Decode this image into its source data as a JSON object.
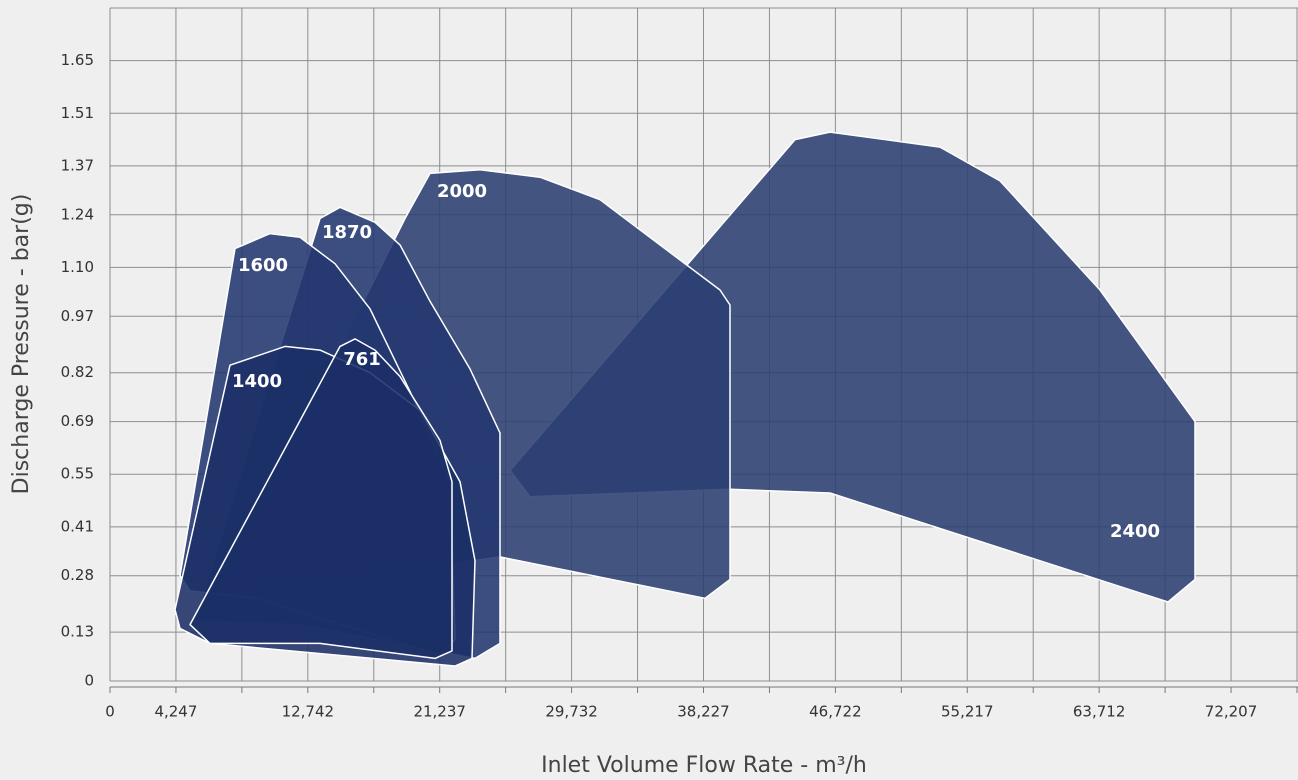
{
  "chart_data": {
    "type": "region",
    "x_label": "Inlet Volume Flow Rate - m³/h",
    "y_label": "Discharge Pressure - bar(g)",
    "xlim": [
      0,
      76520
    ],
    "ylim": [
      0,
      1.79
    ],
    "xticks": [
      0,
      {
        "value": 4247,
        "label": "4,247"
      },
      {
        "value": 12742,
        "label": "12,742"
      },
      {
        "value": 21237,
        "label": "21,237"
      },
      {
        "value": 29732,
        "label": "29,732"
      },
      {
        "value": 38227,
        "label": "38,227"
      },
      {
        "value": 46722,
        "label": "46,722"
      },
      {
        "value": 55217,
        "label": "55,217"
      },
      {
        "value": 63712,
        "label": "63,712"
      },
      {
        "value": 72207,
        "label": "72,207"
      }
    ],
    "xminorticks": [
      8495,
      16990,
      25485,
      33980,
      42475,
      50970,
      59465,
      67960,
      76455
    ],
    "yticks": [
      0,
      0.13,
      0.28,
      0.41,
      0.55,
      0.69,
      0.82,
      0.97,
      {
        "value": 1.1,
        "label": "1.10"
      },
      1.24,
      1.37,
      1.51,
      1.65
    ],
    "grid": true,
    "series": [
      {
        "name": "2400",
        "color": "#2b3f72",
        "x": [
          25764,
          44121,
          46375,
          53460,
          57325,
          63766,
          69885,
          69885,
          68146,
          46375,
          39934,
          27052
        ],
        "y": [
          0.56,
          1.44,
          1.46,
          1.42,
          1.33,
          1.04,
          0.69,
          0.27,
          0.21,
          0.5,
          0.51,
          0.49
        ]
      },
      {
        "name": "2000",
        "color": "#2b3f72",
        "x": [
          6763,
          19001,
          20611,
          23832,
          27696,
          31561,
          35426,
          39290,
          39934,
          39934,
          38324,
          25120
        ],
        "y": [
          0.22,
          1.23,
          1.35,
          1.36,
          1.34,
          1.28,
          1.16,
          1.04,
          1.0,
          0.27,
          0.22,
          0.33
        ]
      },
      {
        "name": "1870",
        "color": "#233770",
        "x": [
          5475,
          13526,
          14814,
          17069,
          18679,
          20611,
          23188,
          25120,
          25120,
          23510,
          12238
        ],
        "y": [
          0.16,
          1.23,
          1.26,
          1.22,
          1.16,
          1.01,
          0.83,
          0.66,
          0.1,
          0.06,
          0.15
        ]
      },
      {
        "name": "1600",
        "color": "#233770",
        "x": [
          4509,
          8051,
          10306,
          12238,
          14492,
          16747,
          19323,
          21899,
          22221,
          21255,
          9339,
          5153
        ],
        "y": [
          0.28,
          1.15,
          1.19,
          1.18,
          1.11,
          0.99,
          0.77,
          0.53,
          0.11,
          0.07,
          0.22,
          0.24
        ]
      },
      {
        "name": "1400",
        "color": "#1b2f66",
        "x": [
          4187,
          7729,
          11272,
          13526,
          16747,
          19967,
          22544,
          23510,
          23317,
          22221,
          6441,
          4509
        ],
        "y": [
          0.19,
          0.84,
          0.89,
          0.88,
          0.82,
          0.72,
          0.53,
          0.32,
          0.06,
          0.04,
          0.1,
          0.14
        ]
      },
      {
        "name": "761",
        "color": "#1b2f66",
        "x": [
          5153,
          14814,
          15780,
          17069,
          18679,
          21255,
          22028,
          22028,
          20933,
          13526,
          6441
        ],
        "y": [
          0.15,
          0.89,
          0.91,
          0.88,
          0.81,
          0.64,
          0.53,
          0.08,
          0.06,
          0.1,
          0.1
        ]
      }
    ]
  }
}
